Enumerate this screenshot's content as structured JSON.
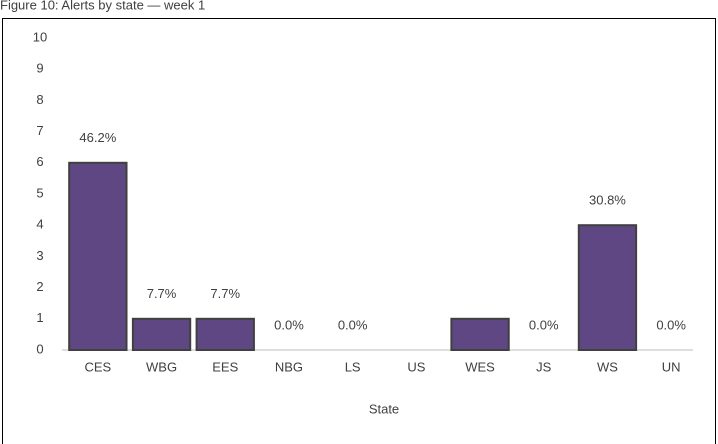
{
  "chart_data": {
    "type": "bar",
    "title": "Figure 10: Alerts by state — week 1",
    "categories": [
      "CES",
      "WBG",
      "EES",
      "NBG",
      "LS",
      "US",
      "WES",
      "JS",
      "WS",
      "UN"
    ],
    "values": [
      6,
      1,
      1,
      0,
      0,
      0,
      1,
      0,
      4,
      0
    ],
    "value_labels": [
      "46.2%",
      "7.7%",
      "7.7%",
      "0.0%",
      "0.0%",
      null,
      null,
      "0.0%",
      "30.8%",
      "0.0%"
    ],
    "color": "#5e4782",
    "x_label": "State",
    "ylim": [
      0,
      10
    ],
    "yticks": [
      0,
      1,
      2,
      3,
      4,
      5,
      6,
      7,
      8,
      9,
      10
    ],
    "grid": false
  }
}
